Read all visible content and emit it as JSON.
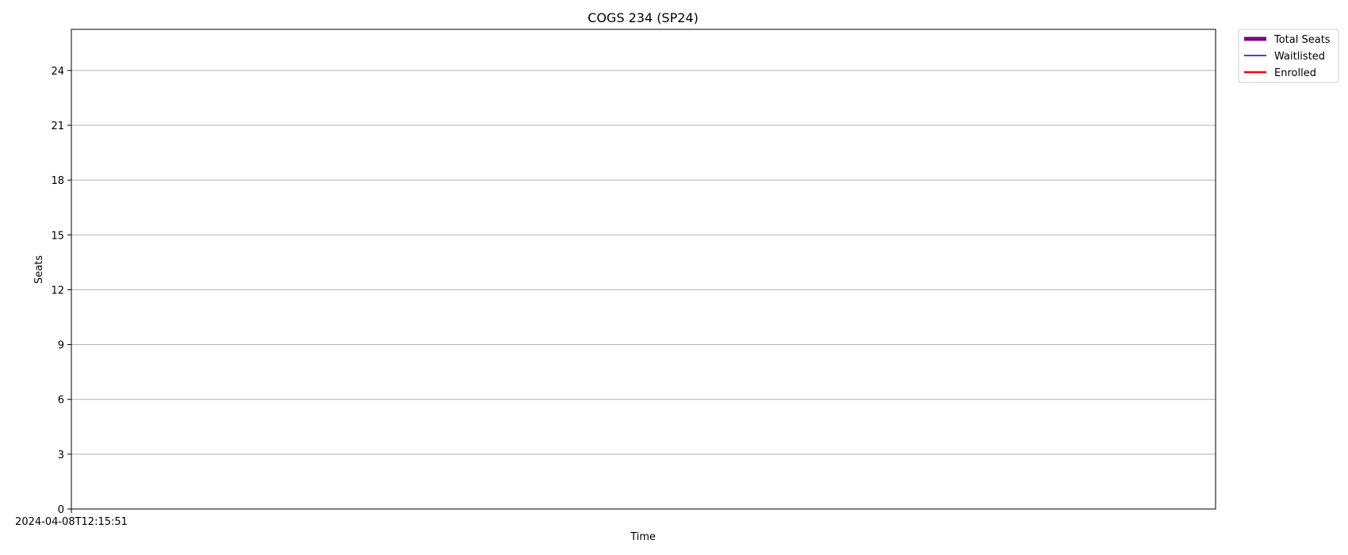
{
  "chart_data": {
    "type": "line",
    "title": "COGS 234 (SP24)",
    "xlabel": "Time",
    "ylabel": "Seats",
    "x_tick_labels": [
      "2024-04-08T12:15:51"
    ],
    "y_ticks": [
      0,
      3,
      6,
      9,
      12,
      15,
      18,
      21,
      24
    ],
    "ylim": [
      0,
      26.25
    ],
    "grid": "horizontal",
    "legend_position": "outside-top-right",
    "series": [
      {
        "name": "Total Seats",
        "color": "#800080",
        "style": "thick",
        "x": [],
        "y": []
      },
      {
        "name": "Waitlisted",
        "color": "#0000ff",
        "style": "thin",
        "x": [],
        "y": []
      },
      {
        "name": "Enrolled",
        "color": "#ff0000",
        "style": "medium",
        "x": [],
        "y": []
      }
    ]
  }
}
